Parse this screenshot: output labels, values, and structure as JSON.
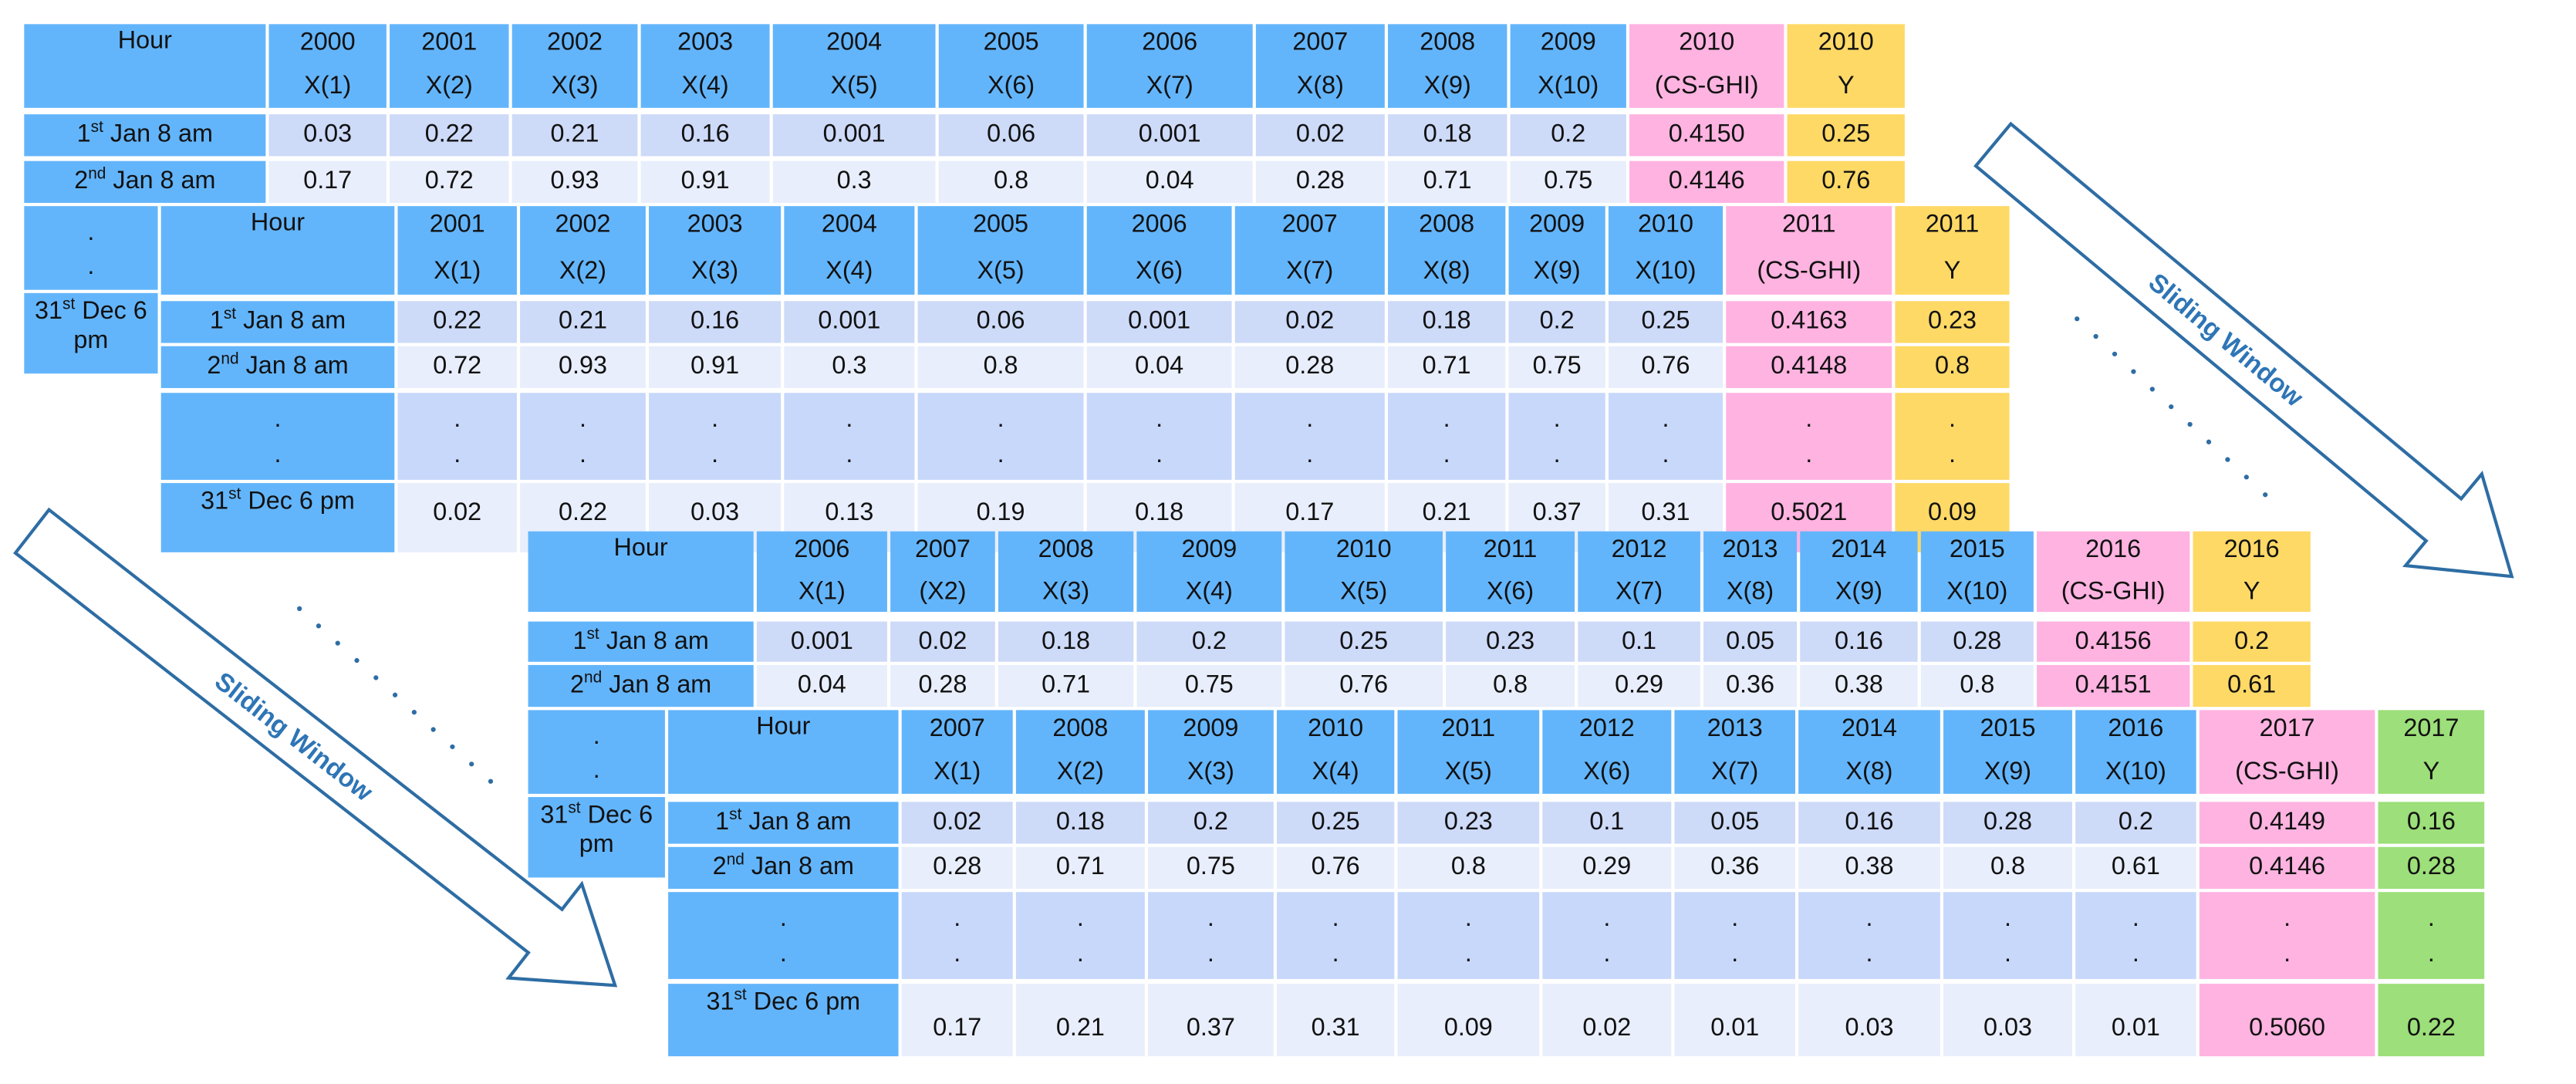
{
  "colors": {
    "header": "#63b5fb",
    "row1": "#cddaf8",
    "row2": "#e8eefc",
    "dots_row": "#c8d8fb",
    "last_row": "#e8eefc",
    "cs_ghi": "#ffb3e1",
    "y_yellow": "#ffd966",
    "y_green": "#9ddf7a",
    "arrow": "#2e6da4"
  },
  "dot": ".",
  "arrows": [
    {
      "label": "Sliding Window"
    },
    {
      "label": "Sliding Window"
    }
  ],
  "tables": [
    {
      "hour": "Hour",
      "cols": [
        [
          "2000",
          "X(1)"
        ],
        [
          "2001",
          "X(2)"
        ],
        [
          "2002",
          "X(3)"
        ],
        [
          "2003",
          "X(4)"
        ],
        [
          "2004",
          "X(5)"
        ],
        [
          "2005",
          "X(6)"
        ],
        [
          "2006",
          "X(7)"
        ],
        [
          "2007",
          "X(8)"
        ],
        [
          "2008",
          "X(9)"
        ],
        [
          "2009",
          "X(10)"
        ],
        [
          "2010",
          "(CS-GHI)"
        ],
        [
          "2010",
          "Y"
        ]
      ],
      "y_color": "#ffd966",
      "rows": [
        {
          "d": "1",
          "s": "st",
          "r": " Jan 8 am",
          "v": [
            "0.03",
            "0.22",
            "0.21",
            "0.16",
            "0.001",
            "0.06",
            "0.001",
            "0.02",
            "0.18",
            "0.2",
            "0.4150",
            "0.25"
          ]
        },
        {
          "d": "2",
          "s": "nd",
          "r": " Jan 8 am",
          "v": [
            "0.17",
            "0.72",
            "0.93",
            "0.91",
            "0.3",
            "0.8",
            "0.04",
            "0.28",
            "0.71",
            "0.75",
            "0.4146",
            "0.76"
          ]
        },
        {
          "dots": true
        },
        {
          "d": "31",
          "s": "st",
          "r": " Dec 6 pm",
          "v": []
        }
      ]
    },
    {
      "hour": "Hour",
      "cols": [
        [
          "2001",
          "X(1)"
        ],
        [
          "2002",
          "X(2)"
        ],
        [
          "2003",
          "X(3)"
        ],
        [
          "2004",
          "X(4)"
        ],
        [
          "2005",
          "X(5)"
        ],
        [
          "2006",
          "X(6)"
        ],
        [
          "2007",
          "X(7)"
        ],
        [
          "2008",
          "X(8)"
        ],
        [
          "2009",
          "X(9)"
        ],
        [
          "2010",
          "X(10)"
        ],
        [
          "2011",
          "(CS-GHI)"
        ],
        [
          "2011",
          "Y"
        ]
      ],
      "y_color": "#ffd966",
      "rows": [
        {
          "d": "1",
          "s": "st",
          "r": " Jan 8 am",
          "v": [
            "0.22",
            "0.21",
            "0.16",
            "0.001",
            "0.06",
            "0.001",
            "0.02",
            "0.18",
            "0.2",
            "0.25",
            "0.4163",
            "0.23"
          ]
        },
        {
          "d": "2",
          "s": "nd",
          "r": " Jan 8 am",
          "v": [
            "0.72",
            "0.93",
            "0.91",
            "0.3",
            "0.8",
            "0.04",
            "0.28",
            "0.71",
            "0.75",
            "0.76",
            "0.4148",
            "0.8"
          ]
        },
        {
          "dots": true
        },
        {
          "d": "31",
          "s": "st",
          "r": " Dec 6 pm",
          "v": [
            "0.02",
            "0.22",
            "0.03",
            "0.13",
            "0.19",
            "0.18",
            "0.17",
            "0.21",
            "0.37",
            "0.31",
            "0.5021",
            "0.09"
          ]
        }
      ]
    },
    {
      "hour": "Hour",
      "cols": [
        [
          "2006",
          "X(1)"
        ],
        [
          "2007",
          "(X2)"
        ],
        [
          "2008",
          "X(3)"
        ],
        [
          "2009",
          "X(4)"
        ],
        [
          "2010",
          "X(5)"
        ],
        [
          "2011",
          "X(6)"
        ],
        [
          "2012",
          "X(7)"
        ],
        [
          "2013",
          "X(8)"
        ],
        [
          "2014",
          "X(9)"
        ],
        [
          "2015",
          "X(10)"
        ],
        [
          "2016",
          "(CS-GHI)"
        ],
        [
          "2016",
          "Y"
        ]
      ],
      "y_color": "#ffd966",
      "rows": [
        {
          "d": "1",
          "s": "st",
          "r": " Jan 8 am",
          "v": [
            "0.001",
            "0.02",
            "0.18",
            "0.2",
            "0.25",
            "0.23",
            "0.1",
            "0.05",
            "0.16",
            "0.28",
            "0.4156",
            "0.2"
          ]
        },
        {
          "d": "2",
          "s": "nd",
          "r": " Jan 8 am",
          "v": [
            "0.04",
            "0.28",
            "0.71",
            "0.75",
            "0.76",
            "0.8",
            "0.29",
            "0.36",
            "0.38",
            "0.8",
            "0.4151",
            "0.61"
          ]
        },
        {
          "dots": true
        },
        {
          "d": "31",
          "s": "st",
          "r": " Dec 6 pm",
          "v": []
        }
      ]
    },
    {
      "hour": "Hour",
      "cols": [
        [
          "2007",
          "X(1)"
        ],
        [
          "2008",
          "X(2)"
        ],
        [
          "2009",
          "X(3)"
        ],
        [
          "2010",
          "X(4)"
        ],
        [
          "2011",
          "X(5)"
        ],
        [
          "2012",
          "X(6)"
        ],
        [
          "2013",
          "X(7)"
        ],
        [
          "2014",
          "X(8)"
        ],
        [
          "2015",
          "X(9)"
        ],
        [
          "2016",
          "X(10)"
        ],
        [
          "2017",
          "(CS-GHI)"
        ],
        [
          "2017",
          "Y"
        ]
      ],
      "y_color": "#9ddf7a",
      "rows": [
        {
          "d": "1",
          "s": "st",
          "r": " Jan 8 am",
          "v": [
            "0.02",
            "0.18",
            "0.2",
            "0.25",
            "0.23",
            "0.1",
            "0.05",
            "0.16",
            "0.28",
            "0.2",
            "0.4149",
            "0.16"
          ]
        },
        {
          "d": "2",
          "s": "nd",
          "r": " Jan 8 am",
          "v": [
            "0.28",
            "0.71",
            "0.75",
            "0.76",
            "0.8",
            "0.29",
            "0.36",
            "0.38",
            "0.8",
            "0.61",
            "0.4146",
            "0.28"
          ]
        },
        {
          "dots": true
        },
        {
          "d": "31",
          "s": "st",
          "r": " Dec 6 pm",
          "v": [
            "0.17",
            "0.21",
            "0.37",
            "0.31",
            "0.09",
            "0.02",
            "0.01",
            "0.03",
            "0.03",
            "0.01",
            "0.5060",
            "0.22"
          ]
        }
      ]
    }
  ]
}
